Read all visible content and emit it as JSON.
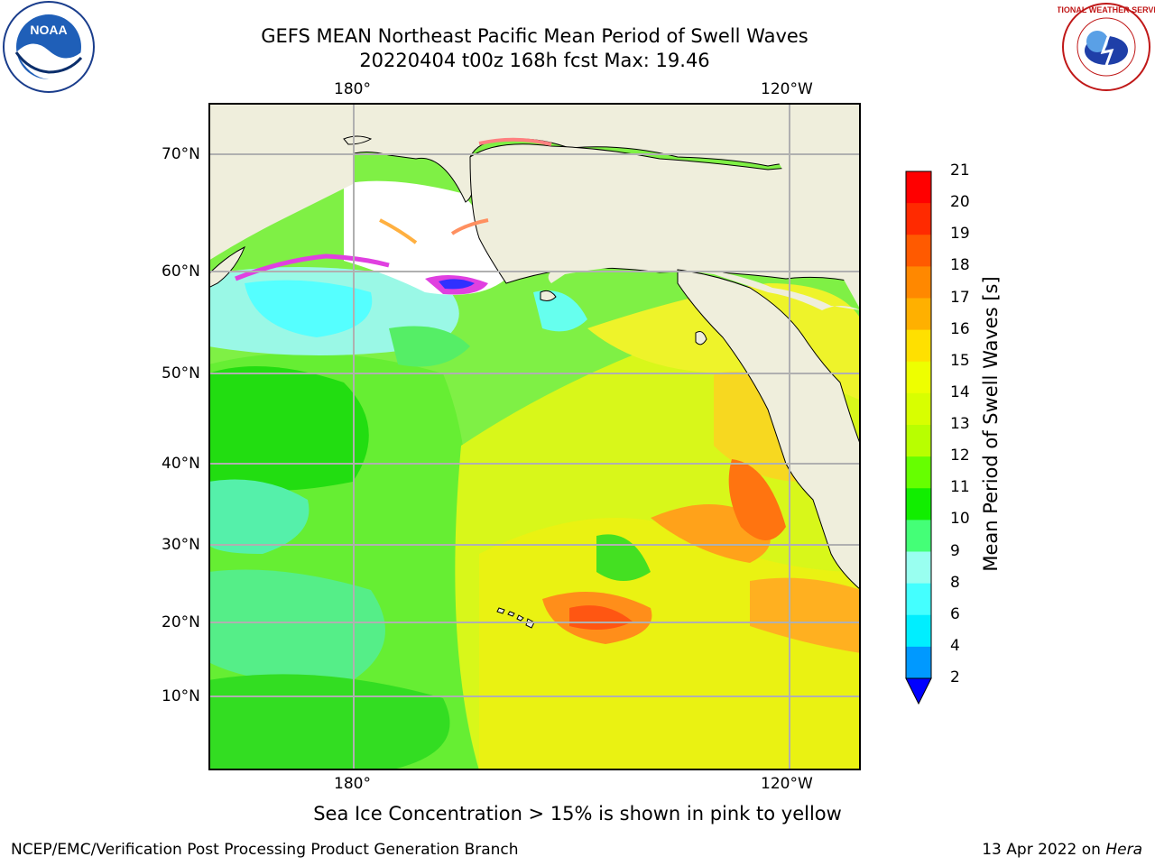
{
  "header": {
    "title_line1": "GEFS MEAN Northeast Pacific Mean Period of Swell Waves",
    "title_line2": "20220404 t00z 168h fcst   Max: 19.46"
  },
  "logos": {
    "left": {
      "icon": "noaa-logo",
      "text": "NOAA"
    },
    "right": {
      "icon": "nws-logo",
      "text": "NATIONAL WEATHER SERVICE"
    }
  },
  "map": {
    "top_lon_labels": [
      "180°",
      "120°W"
    ],
    "bottom_lon_labels": [
      "180°",
      "120°W"
    ],
    "lat_labels": [
      "70°N",
      "60°N",
      "50°N",
      "40°N",
      "30°N",
      "20°N",
      "10°N"
    ],
    "colors": {
      "land": "#efeedc",
      "grid": "#b0b0b0",
      "coast": "#000000"
    }
  },
  "colorbar": {
    "label": "Mean Period of Swell Waves [s]",
    "ticks": [
      "21",
      "20",
      "19",
      "18",
      "17",
      "16",
      "15",
      "14",
      "13",
      "12",
      "11",
      "10",
      "9",
      "8",
      "6",
      "4",
      "2"
    ],
    "colors_top_to_bottom": [
      "#ff0000",
      "#ff2a00",
      "#ff5a00",
      "#ff8800",
      "#ffb000",
      "#ffe000",
      "#eeff00",
      "#d8ff00",
      "#b8ff00",
      "#66ff00",
      "#11ee00",
      "#44ff77",
      "#99fff0",
      "#44ffff",
      "#00eeff",
      "#0099ff",
      "#0000ff"
    ]
  },
  "caption": "Sea Ice Concentration > 15% is shown in pink to yellow",
  "footer": {
    "left": "NCEP/EMC/Verification Post Processing Product Generation Branch",
    "right_date": "13 Apr 2022 on ",
    "right_host": "Hera"
  }
}
